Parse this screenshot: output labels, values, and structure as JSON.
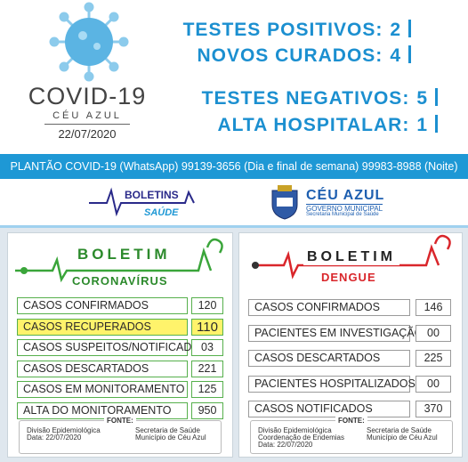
{
  "header": {
    "title": "COVID-19",
    "city": "CÉU AZUL",
    "date": "22/07/2020",
    "stats": [
      {
        "label": "TESTES POSITIVOS:",
        "value": 2
      },
      {
        "label": "NOVOS CURADOS:",
        "value": 4
      },
      {
        "label": "TESTES NEGATIVOS:",
        "value": 5
      },
      {
        "label": "ALTA HOSPITALAR:",
        "value": 1
      }
    ]
  },
  "banner": "PLANTÃO COVID-19 (WhatsApp) 99139-3656 (Dia e final de semana) 99983-8988 (Noite)",
  "logos": {
    "boletins": "BOLETINS",
    "saude": "SAÚDE",
    "city": "CÉU AZUL",
    "government": "GOVERNO MUNICIPAL",
    "department": "Secretaria Municipal de Saúde"
  },
  "covid": {
    "title": "BOLETIM",
    "subtitle": "CORONAVÍRUS",
    "rows": [
      {
        "label": "CASOS CONFIRMADOS",
        "value": "120"
      },
      {
        "label": "CASOS RECUPERADOS",
        "value": "110",
        "highlighted": true
      },
      {
        "label": "CASOS SUSPEITOS/NOTIFICADOS",
        "value": "03"
      },
      {
        "label": "CASOS DESCARTADOS",
        "value": "221"
      },
      {
        "label": "CASOS EM MONITORAMENTO",
        "value": "125"
      },
      {
        "label": "ALTA DO MONITORAMENTO",
        "value": "950"
      }
    ],
    "source_title": "FONTE:",
    "source_left": [
      "Divisão Epidemiológica",
      "Data: 22/07/2020"
    ],
    "source_right": [
      "Secretaria de Saúde",
      "Município de Céu Azul"
    ]
  },
  "dengue": {
    "title": "BOLETIM",
    "subtitle": "DENGUE",
    "rows": [
      {
        "label": "CASOS CONFIRMADOS",
        "value": "146"
      },
      {
        "label": "PACIENTES EM INVESTIGAÇÃO",
        "value": "00"
      },
      {
        "label": "CASOS DESCARTADOS",
        "value": "225"
      },
      {
        "label": "PACIENTES HOSPITALIZADOS",
        "value": "00"
      },
      {
        "label": "CASOS NOTIFICADOS",
        "value": "370"
      }
    ],
    "source_title": "FONTE:",
    "source_left": [
      "Divisão Epidemiológica",
      "Coordenação de Endemias",
      "Data: 22/07/2020"
    ],
    "source_right": [
      "Secretaria de Saúde",
      "Município de Céu Azul"
    ]
  }
}
